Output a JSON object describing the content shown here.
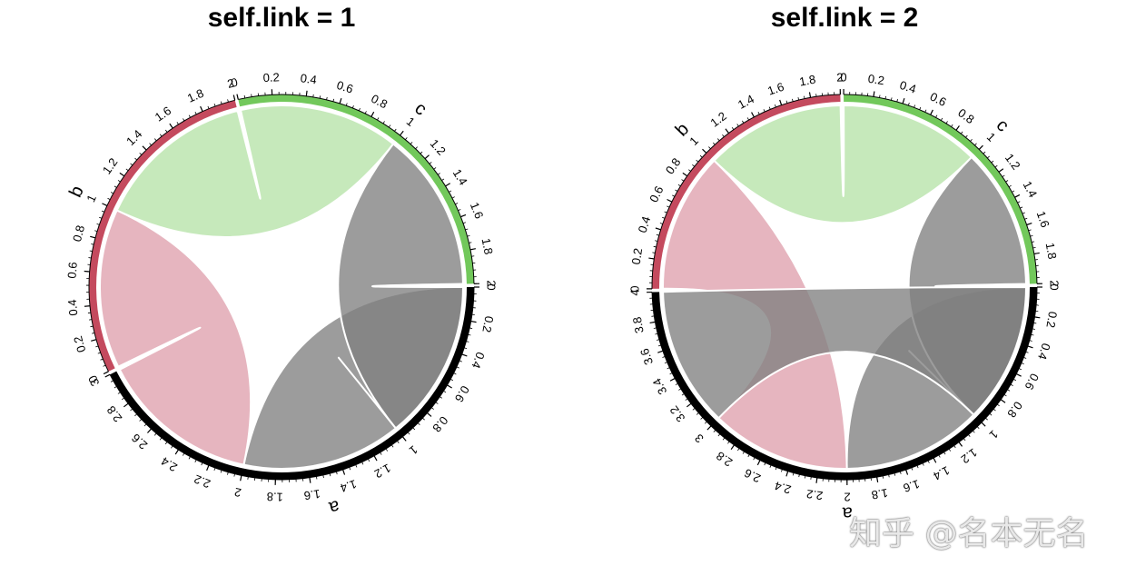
{
  "watermark": "知乎 @名本无名",
  "colors": {
    "a": "#000000",
    "b": "#c44a5e",
    "c": "#72c85b"
  },
  "chart_data": [
    {
      "type": "chord",
      "title": "self.link = 1",
      "sectors": [
        {
          "name": "a",
          "color": "#000000",
          "xlim": [
            0,
            3
          ],
          "major_ticks": [
            0,
            0.2,
            0.4,
            0.6,
            0.8,
            1,
            1.2,
            1.4,
            1.6,
            1.8,
            2,
            2.2,
            2.4,
            2.6,
            2.8,
            3
          ]
        },
        {
          "name": "b",
          "color": "#c44a5e",
          "xlim": [
            0,
            2
          ],
          "major_ticks": [
            0,
            0.2,
            0.4,
            0.6,
            0.8,
            1,
            1.2,
            1.4,
            1.6,
            1.8,
            2
          ]
        },
        {
          "name": "c",
          "color": "#72c85b",
          "xlim": [
            0,
            2
          ],
          "major_ticks": [
            0,
            0.2,
            0.4,
            0.6,
            0.8,
            1,
            1.2,
            1.4,
            1.6,
            1.8,
            2
          ]
        }
      ],
      "links": [
        {
          "from": "a",
          "from_range": [
            0,
            1
          ],
          "to": "a",
          "to_range": [
            1,
            2
          ],
          "color": "#808080"
        },
        {
          "from": "a",
          "from_range": [
            2,
            3
          ],
          "to": "b",
          "to_range": [
            0,
            1
          ],
          "color": "#dfa0ad"
        },
        {
          "from": "b",
          "from_range": [
            1,
            2
          ],
          "to": "c",
          "to_range": [
            0,
            1
          ],
          "color": "#b6e3a8"
        },
        {
          "from": "c",
          "from_range": [
            1,
            2
          ],
          "to": "a",
          "to_range": [
            0,
            1
          ],
          "color": "#808080"
        }
      ]
    },
    {
      "type": "chord",
      "title": "self.link = 2",
      "sectors": [
        {
          "name": "a",
          "color": "#000000",
          "xlim": [
            0,
            4
          ],
          "major_ticks": [
            0,
            0.2,
            0.4,
            0.6,
            0.8,
            1,
            1.2,
            1.4,
            1.6,
            1.8,
            2,
            2.2,
            2.4,
            2.6,
            2.8,
            3,
            3.2,
            3.4,
            3.6,
            3.8,
            4
          ]
        },
        {
          "name": "b",
          "color": "#c44a5e",
          "xlim": [
            0,
            2
          ],
          "major_ticks": [
            0,
            0.2,
            0.4,
            0.6,
            0.8,
            1,
            1.2,
            1.4,
            1.6,
            1.8,
            2
          ]
        },
        {
          "name": "c",
          "color": "#72c85b",
          "xlim": [
            0,
            2
          ],
          "major_ticks": [
            0,
            0.2,
            0.4,
            0.6,
            0.8,
            1,
            1.2,
            1.4,
            1.6,
            1.8,
            2
          ]
        }
      ],
      "links": [
        {
          "from": "a",
          "from_range": [
            0,
            1
          ],
          "to": "a",
          "to_range": [
            1,
            2
          ],
          "color": "#808080"
        },
        {
          "from": "a",
          "from_range": [
            2,
            3
          ],
          "to": "b",
          "to_range": [
            0,
            1
          ],
          "color": "#dfa0ad"
        },
        {
          "from": "b",
          "from_range": [
            1,
            2
          ],
          "to": "c",
          "to_range": [
            0,
            1
          ],
          "color": "#b6e3a8"
        },
        {
          "from": "c",
          "from_range": [
            1,
            2
          ],
          "to": "a",
          "to_range": [
            0,
            1
          ],
          "color": "#808080"
        },
        {
          "from": "a",
          "from_range": [
            3,
            4
          ],
          "to": "a",
          "to_range": [
            0,
            1
          ],
          "color": "#808080"
        }
      ]
    }
  ]
}
